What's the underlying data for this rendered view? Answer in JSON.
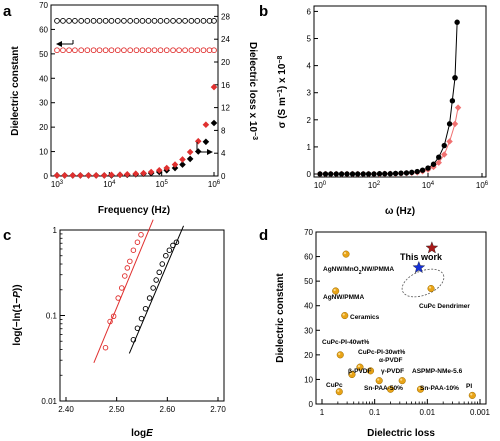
{
  "chart_data": [
    {
      "id": "a",
      "panel_letter": "a",
      "type": "scatter",
      "xlabel": "Frequency (Hz)",
      "ylabel": "Dielectric constant",
      "y2label": "Dielectric loss x 10",
      "y2label_exp": "−3",
      "x_scale": "log",
      "xlim": [
        1000,
        1000000
      ],
      "xticks": [
        {
          "value": 1000,
          "label": "10",
          "exp": "3"
        },
        {
          "value": 10000,
          "label": "10",
          "exp": "4"
        },
        {
          "value": 100000,
          "label": "10",
          "exp": "5"
        },
        {
          "value": 1000000,
          "label": "10",
          "exp": "6"
        }
      ],
      "ylim": [
        0,
        70
      ],
      "yticks": [
        "0",
        "10",
        "20",
        "30",
        "40",
        "50",
        "60",
        "70"
      ],
      "y2lim": [
        0,
        30
      ],
      "y2ticks": [
        "0",
        "4",
        "8",
        "12",
        "16",
        "20",
        "24",
        "28"
      ],
      "grid": false,
      "series": [
        {
          "axis": "left",
          "marker": "open-circle",
          "color": "#000000",
          "x": [
            1000,
            1300,
            1700,
            2200,
            2900,
            3800,
            5000,
            6500,
            8500,
            11000,
            14500,
            19000,
            25000,
            33000,
            43000,
            56000,
            73000,
            95000,
            125000,
            165000,
            215000,
            280000,
            370000,
            480000,
            630000,
            820000,
            1000000
          ],
          "y": [
            63.5,
            63.5,
            63.5,
            63.5,
            63.5,
            63.5,
            63.5,
            63.5,
            63.5,
            63.5,
            63.5,
            63.5,
            63.5,
            63.5,
            63.5,
            63.5,
            63.5,
            63.5,
            63.5,
            63.5,
            63.5,
            63.5,
            63.5,
            63.5,
            63.5,
            63.5,
            63.5
          ]
        },
        {
          "axis": "left",
          "marker": "open-circle",
          "color": "#e0302f",
          "x": [
            1000,
            1300,
            1700,
            2200,
            2900,
            3800,
            5000,
            6500,
            8500,
            11000,
            14500,
            19000,
            25000,
            33000,
            43000,
            56000,
            73000,
            95000,
            125000,
            165000,
            215000,
            280000,
            370000,
            480000,
            630000,
            820000,
            1000000
          ],
          "y": [
            51.5,
            51.5,
            51.5,
            51.5,
            51.5,
            51.5,
            51.5,
            51.5,
            51.5,
            51.5,
            51.5,
            51.5,
            51.5,
            51.5,
            51.5,
            51.5,
            51.5,
            51.5,
            51.5,
            51.5,
            51.5,
            51.5,
            51.5,
            51.5,
            51.5,
            51.5,
            51.5
          ]
        },
        {
          "axis": "right",
          "marker": "diamond",
          "color": "#000000",
          "x": [
            1000,
            1400,
            2000,
            2800,
            4000,
            5600,
            8000,
            11000,
            16000,
            22000,
            32000,
            45000,
            63000,
            90000,
            125000,
            180000,
            250000,
            350000,
            500000,
            700000,
            1000000
          ],
          "y": [
            0.1,
            0.1,
            0.1,
            0.1,
            0.1,
            0.1,
            0.1,
            0.1,
            0.2,
            0.2,
            0.3,
            0.4,
            0.5,
            0.7,
            1.0,
            1.4,
            2.0,
            3.0,
            4.3,
            6.0,
            9.3
          ]
        },
        {
          "axis": "right",
          "marker": "diamond",
          "color": "#e0302f",
          "x": [
            1000,
            1400,
            2000,
            2800,
            4000,
            5600,
            8000,
            11000,
            16000,
            22000,
            32000,
            45000,
            63000,
            90000,
            125000,
            180000,
            250000,
            350000,
            500000,
            700000,
            1000000
          ],
          "y": [
            0.1,
            0.1,
            0.1,
            0.1,
            0.1,
            0.1,
            0.1,
            0.2,
            0.2,
            0.3,
            0.4,
            0.5,
            0.7,
            1.0,
            1.4,
            2.0,
            2.9,
            4.2,
            6.1,
            9.0,
            15.6
          ]
        }
      ]
    },
    {
      "id": "b",
      "panel_letter": "b",
      "type": "line",
      "xlabel": "ω (Hz)",
      "ylabel": "σ (S m",
      "ylabel_exp1": "−1",
      "ylabel_mid": ") x 10",
      "ylabel_exp2": "−8",
      "x_scale": "log",
      "xlim": [
        1,
        1000000
      ],
      "xticks": [
        {
          "value": 1,
          "label": "10",
          "exp": "0"
        },
        {
          "value": 100,
          "label": "10",
          "exp": "2"
        },
        {
          "value": 10000,
          "label": "10",
          "exp": "4"
        },
        {
          "value": 1000000,
          "label": "10",
          "exp": "6"
        }
      ],
      "ylim": [
        0,
        6.2
      ],
      "yticks": [
        "0",
        "1",
        "2",
        "3",
        "4",
        "5",
        "6"
      ],
      "grid": false,
      "series": [
        {
          "marker": "filled-circle",
          "color": "#000000",
          "x": [
            1,
            1.6,
            2.5,
            4,
            6.3,
            10,
            16,
            25,
            40,
            63,
            100,
            160,
            250,
            400,
            630,
            1000,
            1600,
            2500,
            4000,
            6300,
            10000,
            16000,
            25000,
            40000,
            63000,
            100000
          ],
          "y": [
            0.0,
            0.0,
            0.0,
            0.0,
            0.0,
            0.0,
            0.0,
            0.0,
            0.0,
            0.0,
            0.0,
            0.01,
            0.01,
            0.01,
            0.02,
            0.03,
            0.04,
            0.06,
            0.09,
            0.14,
            0.22,
            0.36,
            0.62,
            1.05,
            1.85,
            3.55
          ]
        },
        {
          "marker": "filled-circle",
          "color": "#000000",
          "x": [
            80000,
            100000,
            120000
          ],
          "y": [
            2.7,
            3.55,
            5.6
          ]
        },
        {
          "marker": "diamond",
          "color": "#f07070",
          "x": [
            1,
            1.6,
            2.5,
            4,
            6.3,
            10,
            16,
            25,
            40,
            63,
            100,
            160,
            250,
            400,
            630,
            1000,
            1600,
            2500,
            4000,
            6300,
            10000,
            16000,
            25000,
            40000,
            63000,
            100000,
            130000
          ],
          "y": [
            0.0,
            0.0,
            0.0,
            0.0,
            0.0,
            0.0,
            0.0,
            0.0,
            0.0,
            0.0,
            0.0,
            0.0,
            0.01,
            0.01,
            0.01,
            0.02,
            0.03,
            0.04,
            0.06,
            0.1,
            0.16,
            0.26,
            0.42,
            0.72,
            1.2,
            1.85,
            2.45
          ]
        }
      ]
    },
    {
      "id": "c",
      "panel_letter": "c",
      "type": "scatter",
      "xlabel": "log",
      "xlabel_italic": "E",
      "ylabel": "log(−ln(1−",
      "ylabel_italic": "P",
      "ylabel_end": "))",
      "xlim": [
        2.4,
        2.7
      ],
      "xticks": [
        "2.40",
        "2.50",
        "2.60",
        "2.70"
      ],
      "y_scale": "log",
      "ylim": [
        0.01,
        1
      ],
      "yticks": [
        "0.01",
        "0.1",
        "1"
      ],
      "grid": false,
      "series": [
        {
          "marker": "open-circle",
          "color": "#e0302f",
          "x": [
            2.478,
            2.487,
            2.494,
            2.503,
            2.51,
            2.516,
            2.521,
            2.526,
            2.533,
            2.541,
            2.548
          ],
          "y": [
            0.042,
            0.085,
            0.098,
            0.16,
            0.21,
            0.29,
            0.36,
            0.43,
            0.58,
            0.72,
            0.88
          ],
          "fit": [
            [
              2.455,
              0.028
            ],
            [
              2.572,
              1.32
            ]
          ]
        },
        {
          "marker": "open-circle",
          "color": "#000000",
          "x": [
            2.533,
            2.541,
            2.549,
            2.557,
            2.565,
            2.572,
            2.578,
            2.584,
            2.59,
            2.597,
            2.604,
            2.611,
            2.618
          ],
          "y": [
            0.052,
            0.071,
            0.092,
            0.12,
            0.16,
            0.21,
            0.26,
            0.32,
            0.4,
            0.5,
            0.58,
            0.66,
            0.72
          ],
          "fit": [
            [
              2.525,
              0.036
            ],
            [
              2.632,
              1.12
            ]
          ]
        }
      ]
    },
    {
      "id": "d",
      "panel_letter": "d",
      "type": "scatter",
      "xlabel": "Dielectric loss",
      "ylabel": "Dielectric constant",
      "x_scale": "log-reversed",
      "xlim": [
        1,
        0.001
      ],
      "xticks": [
        "1",
        "0.1",
        "0.01",
        "0.001"
      ],
      "ylim": [
        0,
        70
      ],
      "yticks": [
        "0",
        "10",
        "20",
        "30",
        "40",
        "50",
        "60",
        "70"
      ],
      "grid": false,
      "points": [
        {
          "label": "AgNW/MnO2NW/PMMA",
          "x": 0.35,
          "y": 61,
          "color": "#e8a317"
        },
        {
          "label": "AgNW/PMMA",
          "x": 0.55,
          "y": 46,
          "color": "#e8a317"
        },
        {
          "label": "Ceramics",
          "x": 0.37,
          "y": 36,
          "color": "#e8a317"
        },
        {
          "label": "CuPc-PI-40wt%",
          "x": 0.45,
          "y": 20,
          "color": "#e8a317"
        },
        {
          "label": "CuPc-PI-30wt%",
          "x": 0.19,
          "y": 15,
          "color": "#e8a317"
        },
        {
          "label": "α-PVDF",
          "x": 0.12,
          "y": 13.5,
          "color": "#e8a317"
        },
        {
          "label": "β-PVDF",
          "x": 0.27,
          "y": 12,
          "color": "#e8a317"
        },
        {
          "label": "γ-PVDF",
          "x": 0.082,
          "y": 9.5,
          "color": "#e8a317"
        },
        {
          "label": "CuPc",
          "x": 0.47,
          "y": 5,
          "color": "#e8a317"
        },
        {
          "label": "Sn-PAA-50%",
          "x": 0.05,
          "y": 6,
          "color": "#e8a317"
        },
        {
          "label": "ASPMP-NMe-5.6",
          "x": 0.03,
          "y": 9.5,
          "color": "#e8a317"
        },
        {
          "label": "Sn-PAA-10%",
          "x": 0.0135,
          "y": 6,
          "color": "#e8a317"
        },
        {
          "label": "PI",
          "x": 0.0014,
          "y": 3.5,
          "color": "#e8a317"
        },
        {
          "label": "CuPc Dendrimer",
          "x": 0.0085,
          "y": 47,
          "color": "#e8a317"
        },
        {
          "label": "",
          "x": 0.0145,
          "y": 55.5,
          "color": "#1530d8",
          "marker": "star"
        },
        {
          "label": "",
          "x": 0.0082,
          "y": 63.5,
          "color": "#a81818",
          "marker": "star"
        }
      ],
      "annotation": "This work"
    }
  ],
  "point_labels_d": {
    "agnw_mno2": "AgNW/MnO",
    "agnw_mno2_sub": "2",
    "agnw_mno2_mid": "NW/PMMA",
    "agnw_pmma": "AgNW/PMMA",
    "ceramics": "Ceramics",
    "cupc_pi40": "CuPc-PI-40wt%",
    "cupc_pi30": "CuPc-PI-30wt%",
    "alpha_pvdf": "α-PVDF",
    "beta_pvdf": "β-PVDF",
    "gamma_pvdf": "γ-PVDF",
    "cupc": "CuPc",
    "sn_paa50": "Sn-PAA-50%",
    "aspmp": "ASPMP-NMe-5.6",
    "sn_paa10": "Sn-PAA-10%",
    "pi": "PI",
    "cupc_dendrimer": "CuPc Dendrimer"
  }
}
